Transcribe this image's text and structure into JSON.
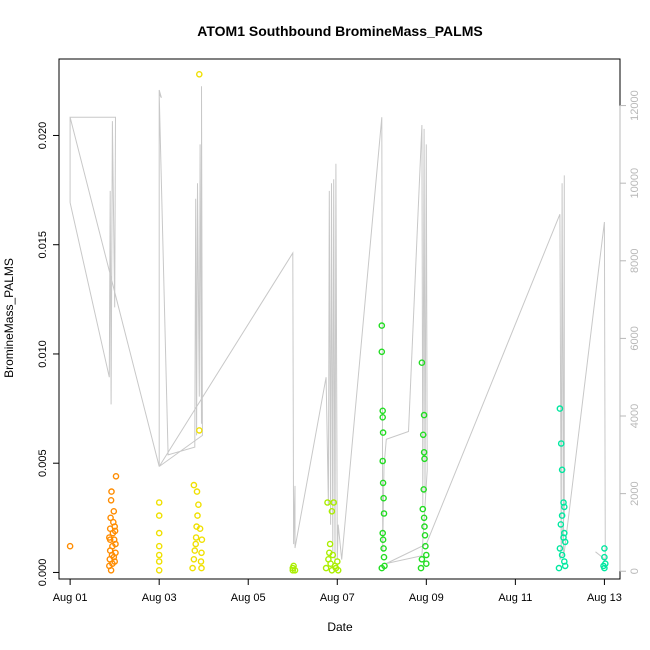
{
  "chart_data": {
    "type": "scatter",
    "title": "ATOM1 Southbound BromineMass_PALMS",
    "xlabel": "Date",
    "ylabel": "BromineMass_PALMS",
    "x_ticks": [
      "Aug 01",
      "Aug 03",
      "Aug 05",
      "Aug 07",
      "Aug 09",
      "Aug 11",
      "Aug 13"
    ],
    "x_tick_days": [
      1,
      3,
      5,
      7,
      9,
      11,
      13
    ],
    "xlim_days": [
      0.75,
      13.35
    ],
    "ylim": [
      -0.0003,
      0.0235
    ],
    "y_ticks": [
      "0.000",
      "0.005",
      "0.010",
      "0.015",
      "0.020"
    ],
    "y_tick_values": [
      0.0,
      0.005,
      0.01,
      0.015,
      0.02
    ],
    "right_axis": {
      "ticks": [
        "0",
        "2000",
        "4000",
        "6000",
        "8000",
        "10000",
        "12000"
      ],
      "tick_values": [
        0,
        2000,
        4000,
        6000,
        8000,
        10000,
        12000
      ],
      "ylim": [
        -200,
        13200
      ],
      "color": "#b8b8b8"
    },
    "grid": false,
    "legend": "none",
    "scatter_series": [
      {
        "color": "#ff8c00",
        "points": [
          [
            1.0,
            0.0012
          ],
          [
            1.88,
            0.0003
          ],
          [
            1.89,
            0.0006
          ],
          [
            1.9,
            0.001
          ],
          [
            1.9,
            0.0015
          ],
          [
            1.9,
            0.002
          ],
          [
            1.91,
            0.0025
          ],
          [
            1.92,
            0.0033
          ],
          [
            1.93,
            0.0037
          ],
          [
            1.94,
            0.0008
          ],
          [
            1.95,
            0.0012
          ],
          [
            1.96,
            0.0018
          ],
          [
            1.97,
            0.0023
          ],
          [
            1.98,
            0.0028
          ],
          [
            1.99,
            0.0015
          ],
          [
            2.0,
            0.0021
          ],
          [
            2.0,
            0.0005
          ],
          [
            2.01,
            0.0019
          ],
          [
            2.02,
            0.0013
          ],
          [
            2.02,
            0.0009
          ],
          [
            2.03,
            0.0044
          ],
          [
            1.92,
            0.0001
          ],
          [
            1.95,
            0.0004
          ],
          [
            1.98,
            0.0007
          ],
          [
            1.88,
            0.0016
          ]
        ]
      },
      {
        "color": "#f0e000",
        "points": [
          [
            3.0,
            0.0032
          ],
          [
            3.0,
            0.0026
          ],
          [
            3.0,
            0.0018
          ],
          [
            3.0,
            0.0012
          ],
          [
            3.0,
            0.0008
          ],
          [
            3.0,
            0.0005
          ],
          [
            3.0,
            0.0001
          ],
          [
            3.75,
            0.0002
          ],
          [
            3.78,
            0.0006
          ],
          [
            3.8,
            0.001
          ],
          [
            3.82,
            0.0013
          ],
          [
            3.83,
            0.0016
          ],
          [
            3.84,
            0.0021
          ],
          [
            3.86,
            0.0026
          ],
          [
            3.88,
            0.0031
          ],
          [
            3.9,
            0.0065
          ],
          [
            3.92,
            0.002
          ],
          [
            3.94,
            0.0005
          ],
          [
            3.95,
            0.0009
          ],
          [
            3.95,
            0.0002
          ],
          [
            3.78,
            0.004
          ],
          [
            3.85,
            0.0037
          ],
          [
            3.9,
            0.0228
          ],
          [
            3.96,
            0.0015
          ]
        ]
      },
      {
        "color": "#aaee00",
        "points": [
          [
            6.0,
            0.0001
          ],
          [
            6.0,
            0.0002
          ],
          [
            6.02,
            0.0003
          ],
          [
            6.05,
            0.0001
          ],
          [
            6.75,
            0.0002
          ],
          [
            6.8,
            0.0006
          ],
          [
            6.82,
            0.0009
          ],
          [
            6.84,
            0.0013
          ],
          [
            6.85,
            0.0004
          ],
          [
            6.88,
            0.0001
          ],
          [
            6.9,
            0.0008
          ],
          [
            6.92,
            0.0032
          ],
          [
            6.95,
            0.0003
          ],
          [
            6.97,
            0.0002
          ],
          [
            7.0,
            0.0005
          ],
          [
            7.02,
            0.0001
          ],
          [
            6.78,
            0.0032
          ],
          [
            6.88,
            0.0028
          ]
        ]
      },
      {
        "color": "#22dd22",
        "points": [
          [
            8.0,
            0.0113
          ],
          [
            8.0,
            0.0101
          ],
          [
            8.02,
            0.0074
          ],
          [
            8.02,
            0.0071
          ],
          [
            8.03,
            0.0064
          ],
          [
            8.02,
            0.0051
          ],
          [
            8.03,
            0.0041
          ],
          [
            8.04,
            0.0034
          ],
          [
            8.05,
            0.0027
          ],
          [
            8.02,
            0.0018
          ],
          [
            8.03,
            0.0015
          ],
          [
            8.04,
            0.0011
          ],
          [
            8.05,
            0.0007
          ],
          [
            8.06,
            0.0003
          ],
          [
            8.0,
            0.0002
          ],
          [
            8.9,
            0.0096
          ],
          [
            8.95,
            0.0072
          ],
          [
            8.93,
            0.0063
          ],
          [
            8.95,
            0.0055
          ],
          [
            8.96,
            0.0052
          ],
          [
            8.94,
            0.0038
          ],
          [
            8.92,
            0.0029
          ],
          [
            8.95,
            0.0025
          ],
          [
            8.96,
            0.0021
          ],
          [
            8.97,
            0.0017
          ],
          [
            8.98,
            0.0012
          ],
          [
            9.0,
            0.0008
          ],
          [
            9.0,
            0.0004
          ],
          [
            8.88,
            0.0002
          ],
          [
            8.9,
            0.0006
          ]
        ]
      },
      {
        "color": "#00e8a0",
        "points": [
          [
            12.0,
            0.0075
          ],
          [
            12.03,
            0.0059
          ],
          [
            12.05,
            0.0047
          ],
          [
            12.08,
            0.0032
          ],
          [
            12.1,
            0.003
          ],
          [
            12.05,
            0.0026
          ],
          [
            12.02,
            0.0022
          ],
          [
            12.1,
            0.0018
          ],
          [
            12.12,
            0.0014
          ],
          [
            12.0,
            0.0011
          ],
          [
            12.05,
            0.0008
          ],
          [
            12.1,
            0.0005
          ],
          [
            12.12,
            0.0003
          ],
          [
            11.98,
            0.0002
          ],
          [
            12.08,
            0.0016
          ],
          [
            13.0,
            0.0011
          ],
          [
            13.0,
            0.0007
          ],
          [
            13.02,
            0.0004
          ],
          [
            13.0,
            0.0002
          ],
          [
            12.98,
            0.0003
          ]
        ]
      }
    ],
    "line_series": {
      "color": "#c8c8c8",
      "axis": "right",
      "points": [
        [
          1.0,
          11700
        ],
        [
          1.0,
          9500
        ],
        [
          1.88,
          5000
        ],
        [
          1.9,
          9800
        ],
        [
          1.92,
          4300
        ],
        [
          1.95,
          11600
        ],
        [
          2.0,
          6800
        ],
        [
          2.02,
          11700
        ],
        [
          1.0,
          11700
        ],
        [
          3.0,
          2700
        ],
        [
          3.0,
          12400
        ],
        [
          3.05,
          12200
        ],
        [
          3.0,
          12300
        ],
        [
          3.2,
          3000
        ],
        [
          3.8,
          3200
        ],
        [
          3.82,
          9600
        ],
        [
          3.84,
          3500
        ],
        [
          3.86,
          10000
        ],
        [
          3.9,
          4500
        ],
        [
          3.92,
          11000
        ],
        [
          3.95,
          3800
        ],
        [
          3.95,
          12500
        ],
        [
          3.97,
          3500
        ],
        [
          3.0,
          2700
        ],
        [
          6.0,
          8200
        ],
        [
          6.02,
          700
        ],
        [
          6.05,
          2200
        ],
        [
          6.05,
          600
        ],
        [
          6.75,
          5000
        ],
        [
          6.8,
          1700
        ],
        [
          6.82,
          9800
        ],
        [
          6.85,
          1200
        ],
        [
          6.87,
          10000
        ],
        [
          6.9,
          500
        ],
        [
          6.92,
          10100
        ],
        [
          6.95,
          300
        ],
        [
          6.97,
          10500
        ],
        [
          7.0,
          300
        ],
        [
          7.02,
          1200
        ],
        [
          7.1,
          300
        ],
        [
          8.0,
          11700
        ],
        [
          8.02,
          500
        ],
        [
          8.05,
          2700
        ],
        [
          8.1,
          3400
        ],
        [
          8.6,
          3600
        ],
        [
          8.9,
          11500
        ],
        [
          8.92,
          1700
        ],
        [
          8.95,
          11400
        ],
        [
          8.97,
          2000
        ],
        [
          9.0,
          11000
        ],
        [
          9.02,
          2600
        ],
        [
          8.9,
          400
        ],
        [
          8.1,
          200
        ],
        [
          9.0,
          700
        ],
        [
          12.0,
          9200
        ],
        [
          12.03,
          600
        ],
        [
          12.05,
          10000
        ],
        [
          12.08,
          400
        ],
        [
          12.1,
          10200
        ],
        [
          12.1,
          1500
        ],
        [
          12.0,
          300
        ],
        [
          12.1,
          500
        ],
        [
          13.0,
          9000
        ],
        [
          13.02,
          300
        ],
        [
          12.8,
          500
        ]
      ]
    }
  }
}
